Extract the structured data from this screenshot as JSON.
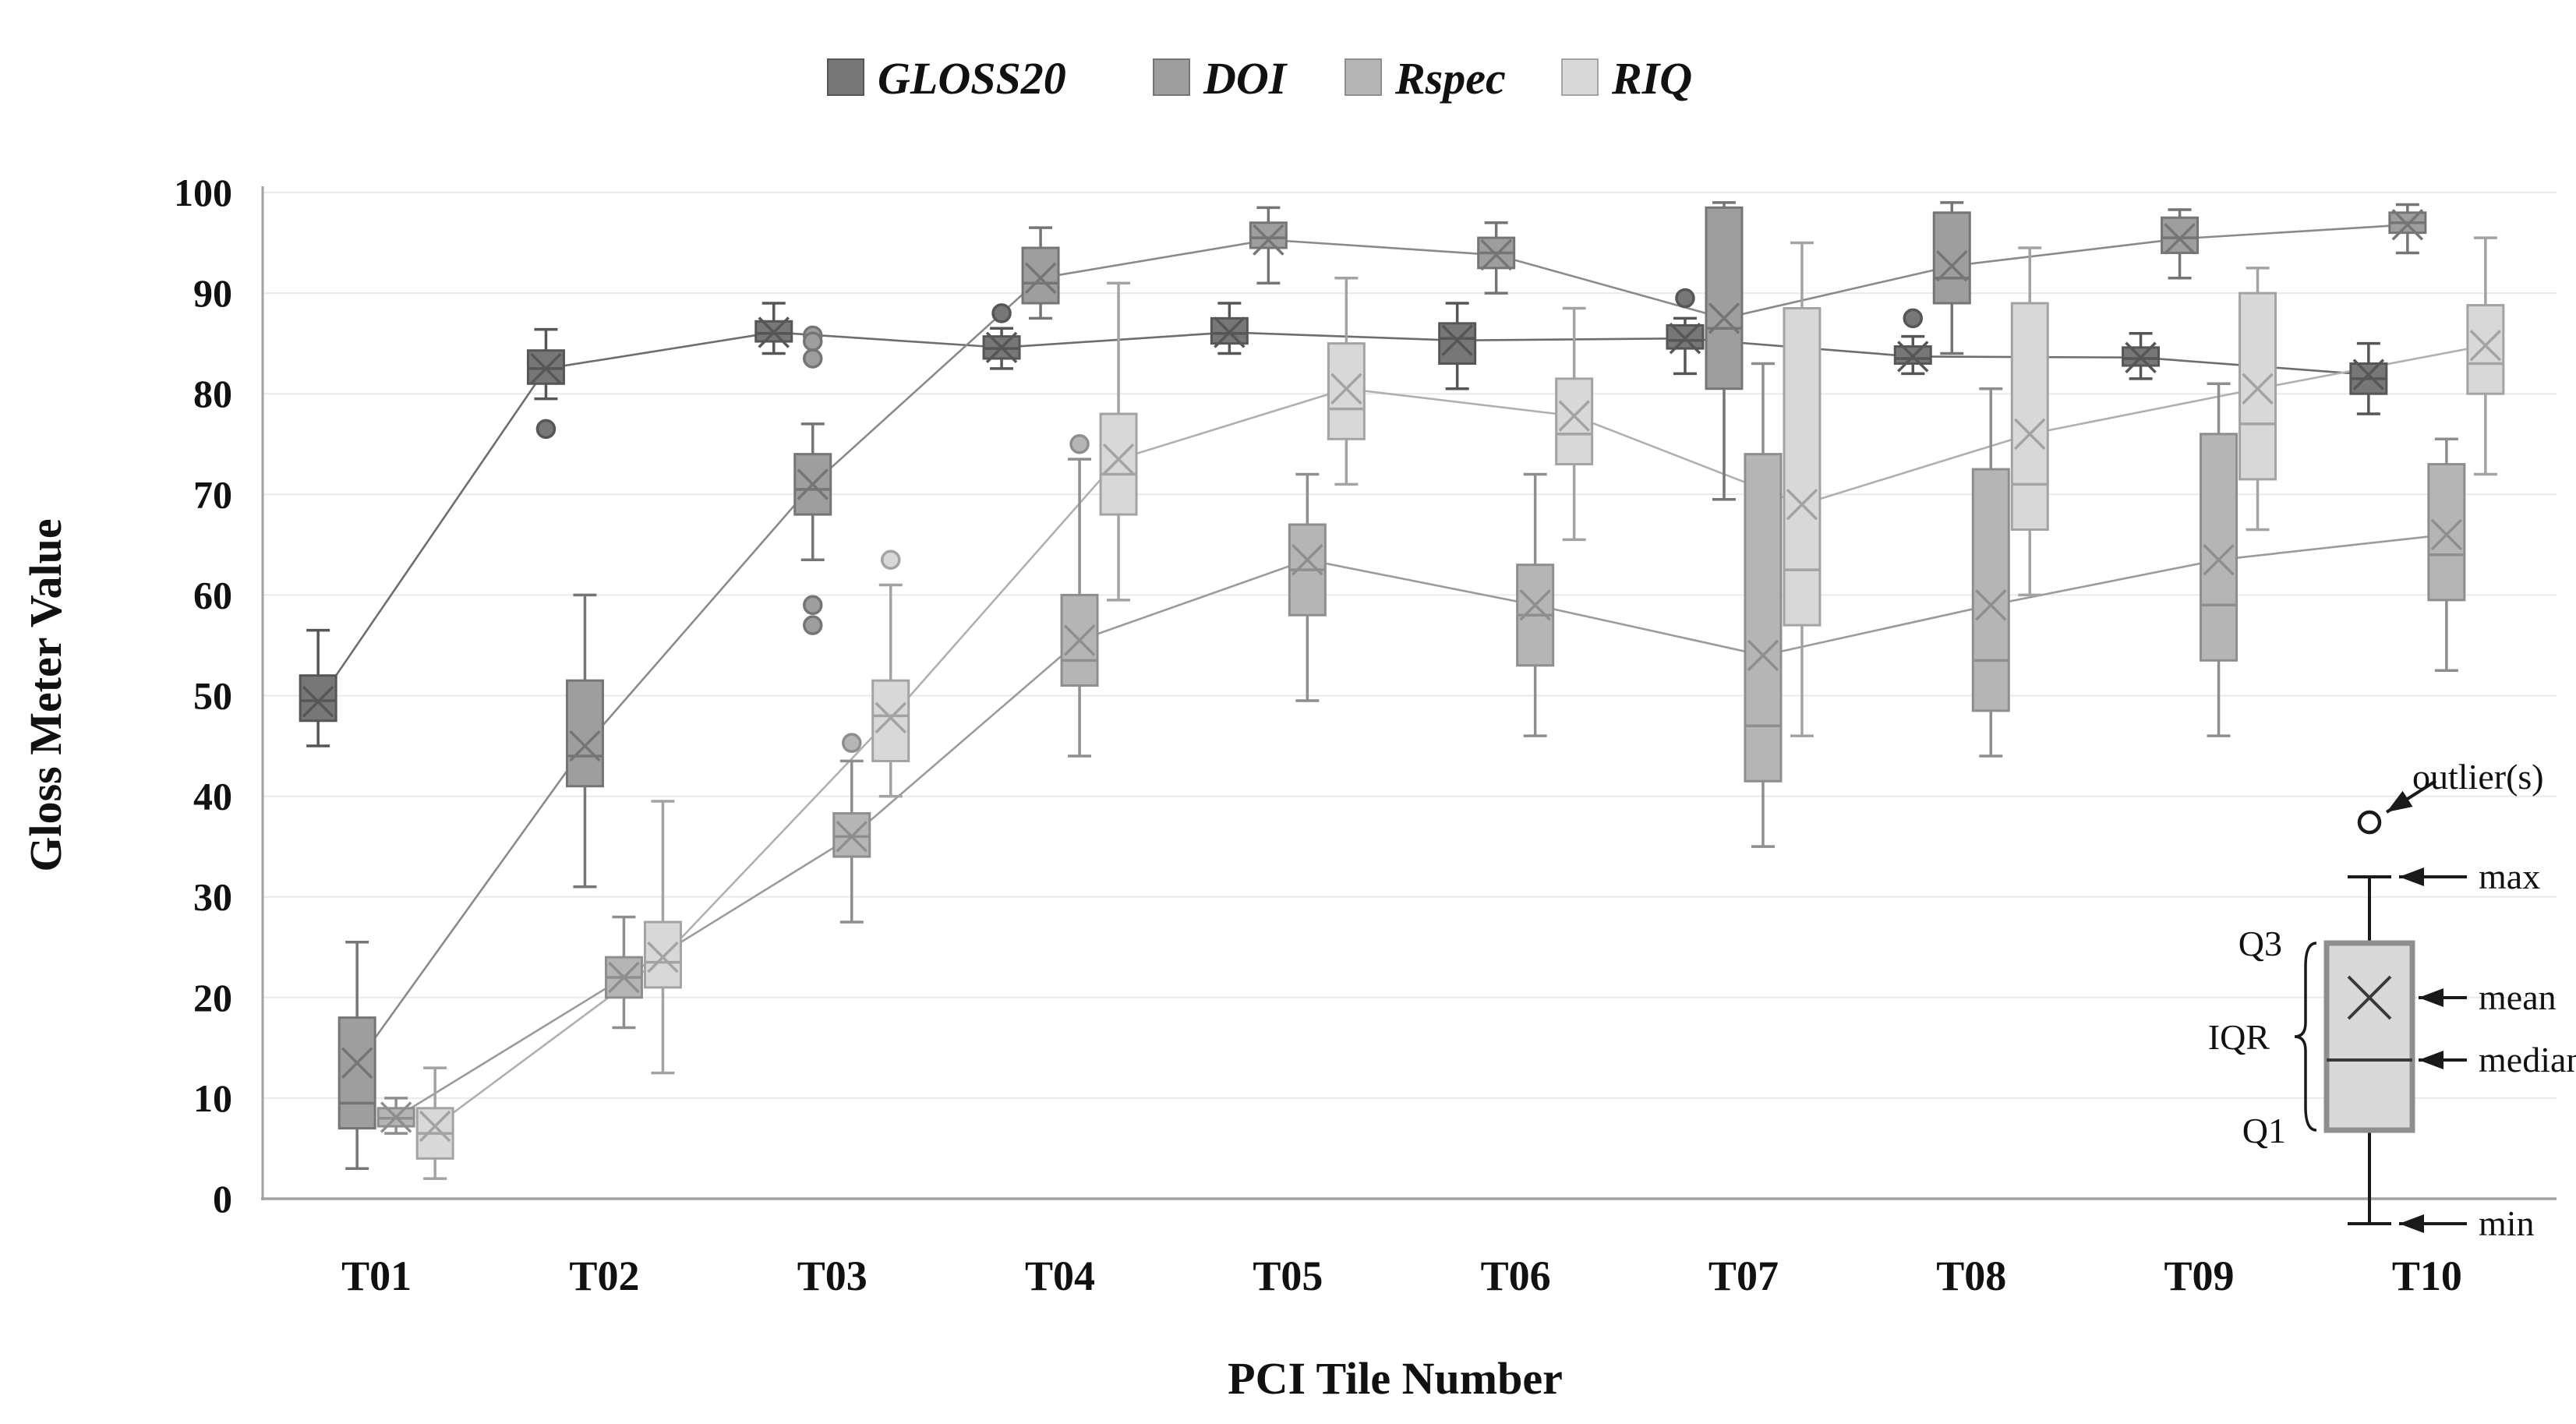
{
  "chart_data": {
    "type": "box",
    "title": "",
    "xlabel": "PCI Tile Number",
    "ylabel": "Gloss Meter Value",
    "ylim": [
      0,
      100
    ],
    "ytick_step": 10,
    "grid": "horizontal",
    "legend_position": "top",
    "categories": [
      "T01",
      "T02",
      "T03",
      "T04",
      "T05",
      "T06",
      "T07",
      "T08",
      "T09",
      "T10"
    ],
    "series": [
      {
        "name": "GLOSS20",
        "fill": "#777777",
        "stroke": "#565656",
        "line": "#6e6e6e",
        "data": [
          {
            "min": 45,
            "q1": 47.5,
            "med": 49.5,
            "mean": 49.4,
            "q3": 52,
            "max": 56.5,
            "outliers": []
          },
          {
            "min": 79.5,
            "q1": 81,
            "med": 82.5,
            "mean": 82.5,
            "q3": 84.3,
            "max": 86.4,
            "outliers": [
              76.5
            ]
          },
          {
            "min": 84,
            "q1": 85.2,
            "med": 86,
            "mean": 86.1,
            "q3": 87.2,
            "max": 89,
            "outliers": []
          },
          {
            "min": 82.5,
            "q1": 83.5,
            "med": 84.5,
            "mean": 84.6,
            "q3": 85.7,
            "max": 86.5,
            "outliers": [
              88
            ]
          },
          {
            "min": 84,
            "q1": 85,
            "med": 86,
            "mean": 86.1,
            "q3": 87.5,
            "max": 89,
            "outliers": []
          },
          {
            "min": 80.5,
            "q1": 83,
            "med": 85.5,
            "mean": 85.3,
            "q3": 87,
            "max": 89,
            "outliers": []
          },
          {
            "min": 82,
            "q1": 84.5,
            "med": 85.3,
            "mean": 85.5,
            "q3": 86.8,
            "max": 87.5,
            "outliers": [
              89.5
            ]
          },
          {
            "min": 82,
            "q1": 83,
            "med": 83.5,
            "mean": 83.7,
            "q3": 84.7,
            "max": 85.7,
            "outliers": [
              87.5
            ]
          },
          {
            "min": 81.5,
            "q1": 82.8,
            "med": 83.5,
            "mean": 83.6,
            "q3": 84.6,
            "max": 86,
            "outliers": []
          },
          {
            "min": 78,
            "q1": 80,
            "med": 81.5,
            "mean": 81.9,
            "q3": 83,
            "max": 85,
            "outliers": []
          }
        ]
      },
      {
        "name": "DOI",
        "fill": "#9e9e9e",
        "stroke": "#757575",
        "line": "#8a8a8a",
        "data": [
          {
            "min": 3,
            "q1": 7,
            "med": 9.5,
            "mean": 13.5,
            "q3": 18,
            "max": 25.5,
            "outliers": []
          },
          {
            "min": 31,
            "q1": 41,
            "med": 44,
            "mean": 45,
            "q3": 51.5,
            "max": 60,
            "outliers": []
          },
          {
            "min": 63.5,
            "q1": 68,
            "med": 70.5,
            "mean": 71,
            "q3": 74,
            "max": 77,
            "outliers": [
              85.8,
              85.2,
              83.5,
              59,
              57
            ]
          },
          {
            "min": 87.5,
            "q1": 89,
            "med": 91,
            "mean": 91.5,
            "q3": 94.5,
            "max": 96.5,
            "outliers": []
          },
          {
            "min": 91,
            "q1": 94.5,
            "med": 95.5,
            "mean": 95.3,
            "q3": 97,
            "max": 98.5,
            "outliers": []
          },
          {
            "min": 90,
            "q1": 92.5,
            "med": 94,
            "mean": 93.8,
            "q3": 95.5,
            "max": 97,
            "outliers": []
          },
          {
            "min": 69.5,
            "q1": 80.5,
            "med": 86.5,
            "mean": 87.5,
            "q3": 98.5,
            "max": 99,
            "outliers": []
          },
          {
            "min": 84,
            "q1": 89,
            "med": 91.5,
            "mean": 92.7,
            "q3": 98,
            "max": 99,
            "outliers": []
          },
          {
            "min": 91.5,
            "q1": 94,
            "med": 95.5,
            "mean": 95.4,
            "q3": 97.5,
            "max": 98.3,
            "outliers": []
          },
          {
            "min": 94,
            "q1": 96,
            "med": 97,
            "mean": 96.8,
            "q3": 98,
            "max": 98.8,
            "outliers": []
          }
        ]
      },
      {
        "name": "Rspec",
        "fill": "#b5b5b5",
        "stroke": "#8e8e8e",
        "line": "#9b9b9b",
        "data": [
          {
            "min": 6.5,
            "q1": 7.2,
            "med": 8,
            "mean": 8.1,
            "q3": 9,
            "max": 10,
            "outliers": []
          },
          {
            "min": 17,
            "q1": 20,
            "med": 22,
            "mean": 22,
            "q3": 24,
            "max": 28,
            "outliers": []
          },
          {
            "min": 27.5,
            "q1": 34,
            "med": 36,
            "mean": 36,
            "q3": 38.3,
            "max": 43.5,
            "outliers": [
              45.3
            ]
          },
          {
            "min": 44,
            "q1": 51,
            "med": 53.5,
            "mean": 55.5,
            "q3": 60,
            "max": 73.5,
            "outliers": [
              75
            ]
          },
          {
            "min": 49.5,
            "q1": 58,
            "med": 62.5,
            "mean": 63.5,
            "q3": 67,
            "max": 72,
            "outliers": []
          },
          {
            "min": 46,
            "q1": 53,
            "med": 58,
            "mean": 59,
            "q3": 63,
            "max": 72,
            "outliers": []
          },
          {
            "min": 35,
            "q1": 41.5,
            "med": 47,
            "mean": 54,
            "q3": 74,
            "max": 83,
            "outliers": []
          },
          {
            "min": 44,
            "q1": 48.5,
            "med": 53.5,
            "mean": 59,
            "q3": 72.5,
            "max": 80.5,
            "outliers": []
          },
          {
            "min": 46,
            "q1": 53.5,
            "med": 59,
            "mean": 63.5,
            "q3": 76,
            "max": 81,
            "outliers": []
          },
          {
            "min": 52.5,
            "q1": 59.5,
            "med": 64,
            "mean": 66,
            "q3": 73,
            "max": 75.5,
            "outliers": []
          }
        ]
      },
      {
        "name": "RIQ",
        "fill": "#d8d8d8",
        "stroke": "#a3a3a3",
        "line": "#b0b0b0",
        "data": [
          {
            "min": 2,
            "q1": 4,
            "med": 6.5,
            "mean": 7.2,
            "q3": 9,
            "max": 13,
            "outliers": []
          },
          {
            "min": 12.5,
            "q1": 21,
            "med": 23.5,
            "mean": 24,
            "q3": 27.5,
            "max": 39.5,
            "outliers": []
          },
          {
            "min": 40,
            "q1": 43.5,
            "med": 48,
            "mean": 47.8,
            "q3": 51.5,
            "max": 61,
            "outliers": [
              63.5
            ]
          },
          {
            "min": 59.5,
            "q1": 68,
            "med": 72,
            "mean": 73.5,
            "q3": 78,
            "max": 91,
            "outliers": []
          },
          {
            "min": 71,
            "q1": 75.5,
            "med": 78.5,
            "mean": 80.5,
            "q3": 85,
            "max": 91.5,
            "outliers": []
          },
          {
            "min": 65.5,
            "q1": 73,
            "med": 76,
            "mean": 77.8,
            "q3": 81.5,
            "max": 88.5,
            "outliers": []
          },
          {
            "min": 46,
            "q1": 57,
            "med": 62.5,
            "mean": 69,
            "q3": 88.5,
            "max": 95,
            "outliers": []
          },
          {
            "min": 60,
            "q1": 66.5,
            "med": 71,
            "mean": 76,
            "q3": 89,
            "max": 94.5,
            "outliers": []
          },
          {
            "min": 66.5,
            "q1": 71.5,
            "med": 77,
            "mean": 80.5,
            "q3": 90,
            "max": 92.5,
            "outliers": []
          },
          {
            "min": 72,
            "q1": 80,
            "med": 83,
            "mean": 84.8,
            "q3": 88.8,
            "max": 95.5,
            "outliers": []
          }
        ]
      }
    ],
    "legend": [
      "GLOSS20",
      "DOI",
      "Rspec",
      "RIQ"
    ],
    "inset_guide": {
      "outliers_label": "outlier(s)",
      "max_label": "max",
      "mean_label": "mean",
      "median_label": "median",
      "min_label": "min",
      "q3_label": "Q3",
      "iqr_label": "IQR",
      "q1_label": "Q1"
    },
    "colors": {
      "grid": "#eaeaea",
      "axis": "#a3a3a3",
      "text": "#111111",
      "inset_ink": "#1a1a1a"
    }
  }
}
